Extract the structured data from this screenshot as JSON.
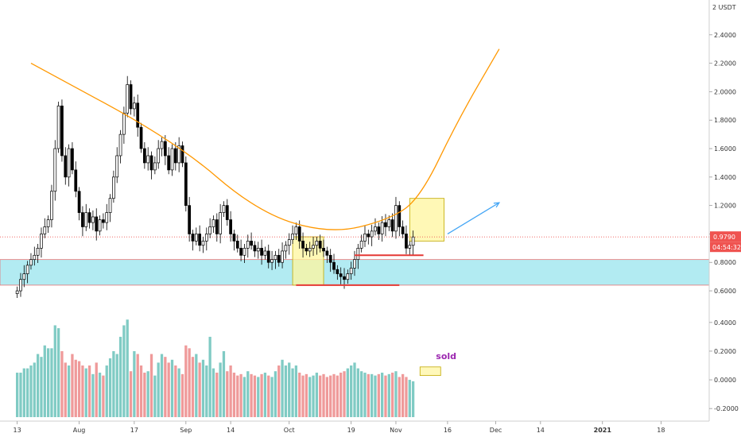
{
  "chart_data": {
    "type": "candlestick",
    "unit_label": "2 USDT",
    "price_axis": {
      "ticks": [
        "2.4000",
        "2.2000",
        "2.0000",
        "1.8000",
        "1.6000",
        "1.4000",
        "1.2000",
        "1.0000",
        "0.8000",
        "0.6000"
      ],
      "tick_values": [
        2.4,
        2.2,
        2.0,
        1.8,
        1.6,
        1.4,
        1.2,
        1.0,
        0.8,
        0.6
      ],
      "range": [
        0.55,
        2.6
      ]
    },
    "volume_axis": {
      "ticks": [
        "0.4000",
        "0.2000",
        "0.0000",
        "-0.2000"
      ],
      "tick_values": [
        0.4,
        0.2,
        0.0,
        -0.2
      ],
      "range": [
        -0.26,
        0.46
      ]
    },
    "time_axis": {
      "labels": [
        {
          "text": "13",
          "day": 0
        },
        {
          "text": "Aug",
          "day": 18
        },
        {
          "text": "17",
          "day": 34
        },
        {
          "text": "Sep",
          "day": 49
        },
        {
          "text": "14",
          "day": 62
        },
        {
          "text": "Oct",
          "day": 79
        },
        {
          "text": "19",
          "day": 97
        },
        {
          "text": "Nov",
          "day": 110
        },
        {
          "text": "16",
          "day": 125
        },
        {
          "text": "Dec",
          "day": 139
        },
        {
          "text": "14",
          "day": 152
        },
        {
          "text": "2021",
          "day": 170,
          "year": true
        },
        {
          "text": "18",
          "day": 187
        }
      ],
      "range_days": [
        -5,
        201
      ]
    },
    "current_price": "0.9790",
    "current_price_value": 0.979,
    "countdown": "04:54:32",
    "annotation": "sold",
    "candles": [
      [
        0.58,
        0.6
      ],
      [
        0.6,
        0.68
      ],
      [
        0.68,
        0.72
      ],
      [
        0.72,
        0.78
      ],
      [
        0.78,
        0.82
      ],
      [
        0.82,
        0.85
      ],
      [
        0.85,
        0.9
      ],
      [
        0.9,
        1.0
      ],
      [
        1.0,
        1.05
      ],
      [
        1.05,
        1.1
      ],
      [
        1.1,
        1.3
      ],
      [
        1.3,
        1.6
      ],
      [
        1.6,
        1.9
      ],
      [
        1.9,
        1.55
      ],
      [
        1.55,
        1.4
      ],
      [
        1.4,
        1.6
      ],
      [
        1.6,
        1.45
      ],
      [
        1.45,
        1.3
      ],
      [
        1.3,
        1.15
      ],
      [
        1.15,
        1.05
      ],
      [
        1.05,
        1.15
      ],
      [
        1.15,
        1.08
      ],
      [
        1.08,
        1.12
      ],
      [
        1.12,
        1.02
      ],
      [
        1.02,
        1.1
      ],
      [
        1.1,
        1.08
      ],
      [
        1.08,
        1.15
      ],
      [
        1.15,
        1.25
      ],
      [
        1.25,
        1.4
      ],
      [
        1.4,
        1.55
      ],
      [
        1.55,
        1.7
      ],
      [
        1.7,
        1.85
      ],
      [
        1.85,
        2.05
      ],
      [
        2.05,
        1.88
      ],
      [
        1.88,
        1.92
      ],
      [
        1.92,
        1.75
      ],
      [
        1.75,
        1.6
      ],
      [
        1.6,
        1.5
      ],
      [
        1.5,
        1.55
      ],
      [
        1.55,
        1.45
      ],
      [
        1.45,
        1.5
      ],
      [
        1.5,
        1.6
      ],
      [
        1.6,
        1.65
      ],
      [
        1.65,
        1.55
      ],
      [
        1.55,
        1.45
      ],
      [
        1.45,
        1.6
      ],
      [
        1.6,
        1.5
      ],
      [
        1.5,
        1.62
      ],
      [
        1.62,
        1.5
      ],
      [
        1.5,
        1.2
      ],
      [
        1.2,
        1.0
      ],
      [
        1.0,
        0.95
      ],
      [
        0.95,
        1.0
      ],
      [
        1.0,
        0.92
      ],
      [
        0.92,
        0.95
      ],
      [
        0.95,
        1.0
      ],
      [
        1.0,
        1.05
      ],
      [
        1.05,
        1.1
      ],
      [
        1.1,
        1.0
      ],
      [
        1.0,
        1.15
      ],
      [
        1.15,
        1.2
      ],
      [
        1.2,
        1.1
      ],
      [
        1.1,
        1.0
      ],
      [
        1.0,
        0.95
      ],
      [
        0.95,
        0.9
      ],
      [
        0.9,
        0.85
      ],
      [
        0.85,
        0.9
      ],
      [
        0.9,
        0.95
      ],
      [
        0.95,
        0.92
      ],
      [
        0.92,
        0.88
      ],
      [
        0.88,
        0.9
      ],
      [
        0.9,
        0.85
      ],
      [
        0.85,
        0.88
      ],
      [
        0.88,
        0.8
      ],
      [
        0.8,
        0.82
      ],
      [
        0.82,
        0.85
      ],
      [
        0.85,
        0.8
      ],
      [
        0.8,
        0.88
      ],
      [
        0.88,
        0.92
      ],
      [
        0.92,
        0.96
      ],
      [
        0.96,
        1.0
      ],
      [
        1.0,
        1.05
      ],
      [
        1.05,
        0.95
      ],
      [
        0.95,
        0.9
      ],
      [
        0.9,
        0.88
      ],
      [
        0.88,
        0.9
      ],
      [
        0.9,
        0.92
      ],
      [
        0.92,
        0.95
      ],
      [
        0.95,
        0.9
      ],
      [
        0.9,
        0.88
      ],
      [
        0.88,
        0.85
      ],
      [
        0.85,
        0.8
      ],
      [
        0.8,
        0.75
      ],
      [
        0.75,
        0.72
      ],
      [
        0.72,
        0.7
      ],
      [
        0.7,
        0.68
      ],
      [
        0.68,
        0.72
      ],
      [
        0.72,
        0.76
      ],
      [
        0.76,
        0.82
      ],
      [
        0.82,
        0.9
      ],
      [
        0.9,
        0.95
      ],
      [
        0.95,
        1.0
      ],
      [
        1.0,
        0.98
      ],
      [
        0.98,
        1.02
      ],
      [
        1.02,
        1.05
      ],
      [
        1.05,
        1.0
      ],
      [
        1.0,
        1.08
      ],
      [
        1.08,
        1.05
      ],
      [
        1.05,
        1.1
      ],
      [
        1.1,
        1.02
      ],
      [
        1.02,
        1.2
      ],
      [
        1.2,
        1.05
      ],
      [
        1.05,
        1.0
      ],
      [
        1.0,
        0.9
      ],
      [
        0.9,
        0.92
      ],
      [
        0.92,
        0.979
      ]
    ],
    "volume": [
      0.05,
      0.05,
      0.08,
      0.08,
      0.1,
      0.12,
      0.18,
      0.16,
      0.24,
      0.22,
      0.22,
      0.38,
      0.36,
      0.2,
      0.12,
      0.1,
      0.18,
      0.14,
      0.13,
      0.1,
      0.08,
      0.1,
      0.04,
      0.12,
      0.05,
      0.03,
      0.1,
      0.15,
      0.2,
      0.18,
      0.3,
      0.38,
      0.42,
      0.06,
      0.2,
      0.18,
      0.1,
      0.05,
      0.06,
      0.18,
      0.03,
      0.12,
      0.18,
      0.16,
      0.12,
      0.14,
      0.1,
      0.08,
      0.04,
      0.24,
      0.22,
      0.16,
      0.18,
      0.12,
      0.14,
      0.1,
      0.3,
      0.08,
      0.05,
      0.12,
      0.2,
      0.06,
      0.1,
      0.05,
      0.03,
      0.04,
      0.02,
      0.06,
      0.04,
      0.03,
      0.02,
      0.04,
      0.05,
      0.03,
      0.02,
      0.06,
      0.1,
      0.14,
      0.1,
      0.12,
      0.08,
      0.1,
      0.05,
      0.03,
      0.04,
      0.02,
      0.03,
      0.05,
      0.03,
      0.04,
      0.02,
      0.03,
      0.04,
      0.03,
      0.05,
      0.06,
      0.08,
      0.1,
      0.12,
      0.08,
      0.06,
      0.05,
      0.04,
      0.04,
      0.03,
      0.04,
      0.05,
      0.03,
      0.04,
      0.05,
      0.06,
      0.02,
      0.04,
      0.02,
      0.0,
      -0.01
    ],
    "annotations": {
      "support_zone": [
        0.64,
        0.82
      ],
      "lower_support_line": {
        "day_range": [
          81,
          111
        ],
        "value": 0.64
      },
      "upper_support_line": {
        "day_range": [
          98,
          118
        ],
        "value": 0.85
      },
      "cup_curve": {
        "points": [
          [
            4,
            2.2
          ],
          [
            46,
            1.65
          ],
          [
            70,
            1.15
          ],
          [
            91,
            1.0
          ],
          [
            108,
            1.1
          ],
          [
            117,
            1.25
          ],
          [
            128,
            1.8
          ],
          [
            140,
            2.3
          ]
        ]
      },
      "box_lower": {
        "day_range": [
          80,
          89
        ],
        "value_range": [
          0.64,
          0.98
        ]
      },
      "box_upper": {
        "day_range": [
          114,
          124
        ],
        "value_range": [
          0.95,
          1.25
        ]
      },
      "arrow": {
        "from": [
          125,
          1.0
        ],
        "to": [
          140,
          1.22
        ]
      },
      "volume_box": {
        "day_range": [
          117,
          123
        ],
        "value_range": [
          0.03,
          0.09
        ]
      }
    },
    "colors": {
      "up": "#26a69a",
      "down": "#ef5350",
      "up_volume": "#80cbc4",
      "down_volume": "#ef9a9a",
      "zone": "#b2ebf2",
      "curve": "#ff9800",
      "support_line": "#e53935",
      "box_fill": "#fff59d",
      "arrow": "#42a5f5",
      "price_tag": "#ef5350",
      "annotation": "#9c27b0"
    }
  }
}
